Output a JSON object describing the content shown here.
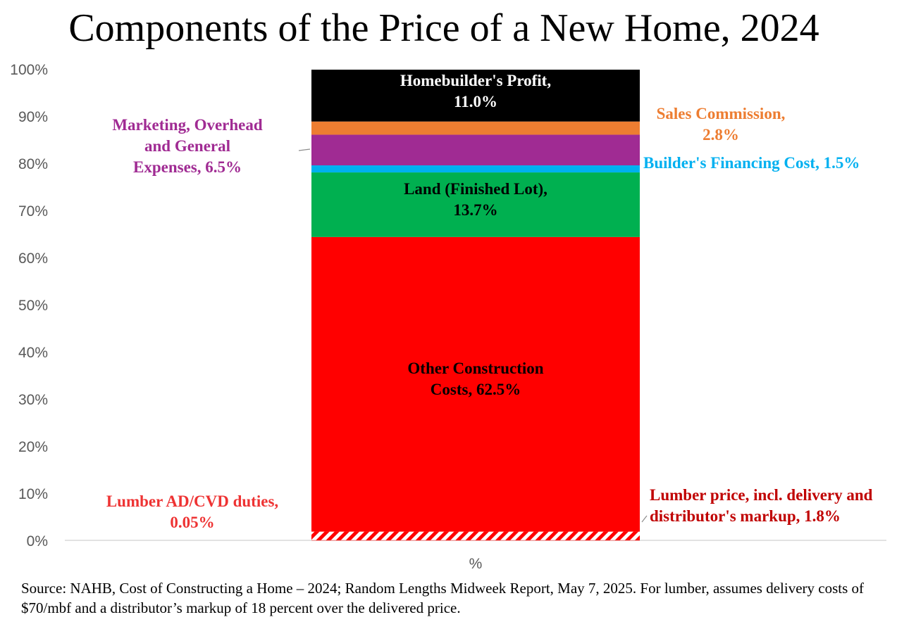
{
  "title": "Components of the Price of a New Home, 2024",
  "source": "Source: NAHB, Cost of Constructing a Home – 2024; Random Lengths Midweek Report, May 7, 2025.  For lumber, assumes delivery costs of $70/mbf and a distributor’s markup of 18 percent over the delivered price.",
  "chart_data": {
    "type": "bar",
    "stacked": true,
    "categories": [
      "%"
    ],
    "xlabel": "%",
    "ylim": [
      0,
      100
    ],
    "ytick_labels": [
      "0%",
      "10%",
      "20%",
      "30%",
      "40%",
      "50%",
      "60%",
      "70%",
      "80%",
      "90%",
      "100%"
    ],
    "grid": false,
    "series": [
      {
        "name": "Lumber AD/CVD duties",
        "value": 0.05,
        "color": "#ff0000",
        "label_lines": [
          "Lumber AD/CVD duties,",
          "0.05%"
        ],
        "label_color": "#ee3333"
      },
      {
        "name": "Lumber price, incl. delivery and distributor's markup",
        "value": 1.8,
        "color": "#ff0000",
        "pattern": "hatched",
        "label_lines": [
          "Lumber price, incl. delivery and",
          "distributor's markup, 1.8%"
        ],
        "label_color": "#c00000"
      },
      {
        "name": "Other Construction Costs",
        "value": 62.5,
        "color": "#ff0000",
        "label_lines": [
          "Other Construction",
          "Costs, 62.5%"
        ],
        "label_color": "#000000"
      },
      {
        "name": "Land (Finished Lot)",
        "value": 13.7,
        "color": "#00b050",
        "label_lines": [
          "Land (Finished Lot),",
          "13.7%"
        ],
        "label_color": "#000000"
      },
      {
        "name": "Builder's Financing Cost",
        "value": 1.5,
        "color": "#00b0f0",
        "label_lines": [
          "Builder's Financing Cost, 1.5%"
        ],
        "label_color": "#00b0f0"
      },
      {
        "name": "Marketing, Overhead and General Expenses",
        "value": 6.5,
        "color": "#a02b93",
        "label_lines": [
          "Marketing, Overhead",
          "and General",
          "Expenses, 6.5%"
        ],
        "label_color": "#a02b93"
      },
      {
        "name": "Sales Commission",
        "value": 2.8,
        "color": "#ed7d31",
        "label_lines": [
          "Sales Commission,",
          "2.8%"
        ],
        "label_color": "#ed7d31"
      },
      {
        "name": "Homebuilder's Profit",
        "value": 11.0,
        "color": "#000000",
        "label_lines": [
          "Homebuilder's Profit,",
          "11.0%"
        ],
        "label_color": "#ffffff"
      }
    ]
  }
}
